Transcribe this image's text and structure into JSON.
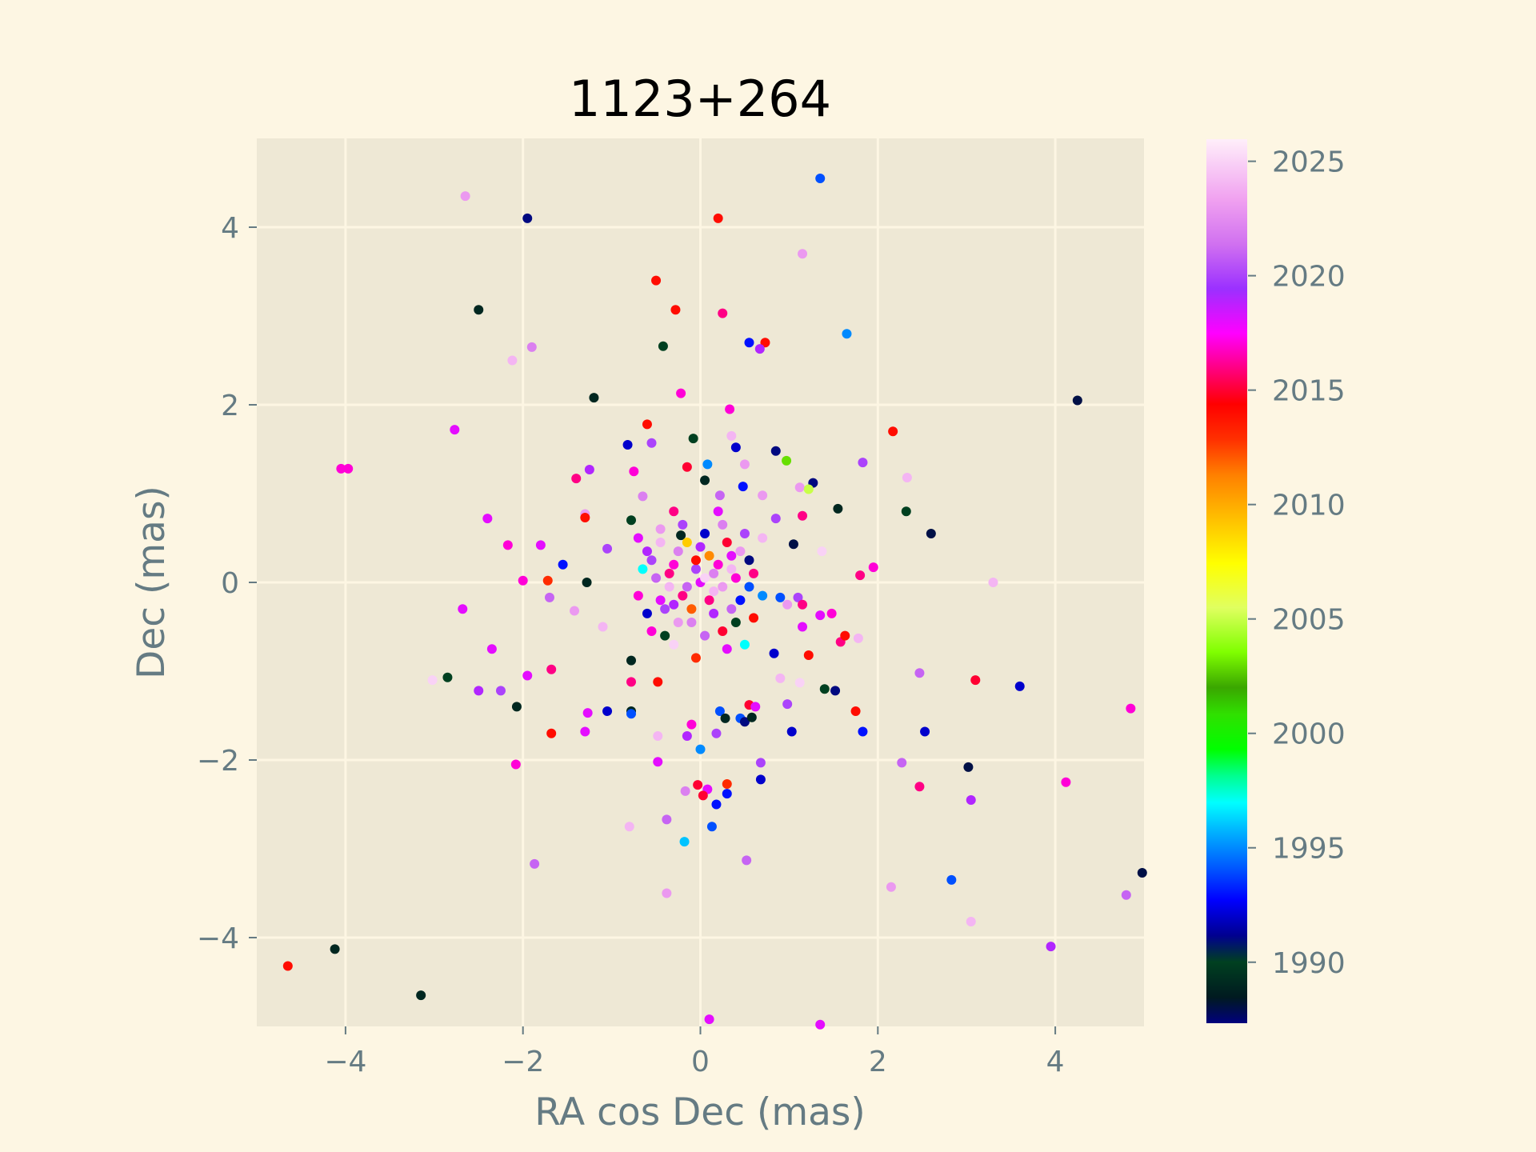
{
  "chart_data": {
    "type": "scatter",
    "title": "1123+264",
    "xlabel": "RA cos Dec (mas)",
    "ylabel": "Dec (mas)",
    "xlim": [
      -5,
      5
    ],
    "ylim": [
      -5,
      5
    ],
    "xticks": [
      -4,
      -2,
      0,
      2,
      4
    ],
    "yticks": [
      -4,
      -2,
      0,
      2,
      4
    ],
    "xtick_labels": [
      "−4",
      "−2",
      "0",
      "2",
      "4"
    ],
    "ytick_labels": [
      "−4",
      "−2",
      "0",
      "2",
      "4"
    ],
    "grid": true,
    "colorbar": {
      "label": "",
      "range": [
        1987.3,
        2026.0
      ],
      "ticks": [
        1990,
        1995,
        2000,
        2005,
        2010,
        2015,
        2020,
        2025
      ],
      "tick_labels": [
        "1990",
        "1995",
        "2000",
        "2005",
        "2010",
        "2015",
        "2020",
        "2025"
      ],
      "colormap": "gist_ncar"
    },
    "colors": {
      "figure_bg": "#fdf6e3",
      "axes_bg": "#eee8d5",
      "grid": "#fdf6e3",
      "tick_text": "#657b83",
      "title_text": "#000000"
    },
    "points": [
      {
        "x": 1.35,
        "y": 4.55,
        "t": 1994
      },
      {
        "x": -2.65,
        "y": 4.35,
        "t": 2023
      },
      {
        "x": -1.95,
        "y": 4.1,
        "t": 1991
      },
      {
        "x": 0.2,
        "y": 4.1,
        "t": 2014
      },
      {
        "x": 1.15,
        "y": 3.7,
        "t": 2023
      },
      {
        "x": -0.5,
        "y": 3.4,
        "t": 2014
      },
      {
        "x": -2.5,
        "y": 3.07,
        "t": 1989
      },
      {
        "x": -0.28,
        "y": 3.07,
        "t": 2014
      },
      {
        "x": 0.25,
        "y": 3.03,
        "t": 2016
      },
      {
        "x": 1.65,
        "y": 2.8,
        "t": 1995
      },
      {
        "x": -0.42,
        "y": 2.66,
        "t": 1990
      },
      {
        "x": 0.55,
        "y": 2.7,
        "t": 1993
      },
      {
        "x": 0.73,
        "y": 2.7,
        "t": 2014
      },
      {
        "x": 0.67,
        "y": 2.63,
        "t": 2019
      },
      {
        "x": -1.9,
        "y": 2.65,
        "t": 2022
      },
      {
        "x": -2.12,
        "y": 2.5,
        "t": 2024
      },
      {
        "x": -1.2,
        "y": 2.08,
        "t": 1989
      },
      {
        "x": -0.22,
        "y": 2.13,
        "t": 2017
      },
      {
        "x": 0.33,
        "y": 1.95,
        "t": 2017
      },
      {
        "x": 4.25,
        "y": 2.05,
        "t": 1988
      },
      {
        "x": -2.77,
        "y": 1.72,
        "t": 2018
      },
      {
        "x": -0.6,
        "y": 1.78,
        "t": 2014
      },
      {
        "x": -0.08,
        "y": 1.62,
        "t": 1990
      },
      {
        "x": 0.35,
        "y": 1.65,
        "t": 2024
      },
      {
        "x": 2.17,
        "y": 1.7,
        "t": 2014
      },
      {
        "x": -0.82,
        "y": 1.55,
        "t": 1992
      },
      {
        "x": -0.55,
        "y": 1.57,
        "t": 2020
      },
      {
        "x": 0.4,
        "y": 1.52,
        "t": 1992
      },
      {
        "x": 0.85,
        "y": 1.48,
        "t": 1991
      },
      {
        "x": 0.97,
        "y": 1.37,
        "t": 2003
      },
      {
        "x": 1.83,
        "y": 1.35,
        "t": 2020
      },
      {
        "x": -4.05,
        "y": 1.28,
        "t": 2017
      },
      {
        "x": -3.97,
        "y": 1.28,
        "t": 2017
      },
      {
        "x": -0.75,
        "y": 1.25,
        "t": 2017
      },
      {
        "x": -0.15,
        "y": 1.3,
        "t": 2015
      },
      {
        "x": 0.08,
        "y": 1.33,
        "t": 1995
      },
      {
        "x": 0.5,
        "y": 1.33,
        "t": 2023
      },
      {
        "x": -1.25,
        "y": 1.27,
        "t": 2019
      },
      {
        "x": -1.4,
        "y": 1.17,
        "t": 2016
      },
      {
        "x": 0.05,
        "y": 1.15,
        "t": 1989
      },
      {
        "x": 1.27,
        "y": 1.12,
        "t": 1991
      },
      {
        "x": 2.33,
        "y": 1.18,
        "t": 2024
      },
      {
        "x": 0.48,
        "y": 1.08,
        "t": 1993
      },
      {
        "x": 1.12,
        "y": 1.07,
        "t": 2023
      },
      {
        "x": 1.22,
        "y": 1.05,
        "t": 2005
      },
      {
        "x": -0.65,
        "y": 0.97,
        "t": 2022
      },
      {
        "x": 0.22,
        "y": 0.98,
        "t": 2021
      },
      {
        "x": 0.7,
        "y": 0.98,
        "t": 2023
      },
      {
        "x": 1.55,
        "y": 0.83,
        "t": 1989
      },
      {
        "x": 2.32,
        "y": 0.8,
        "t": 1990
      },
      {
        "x": -1.3,
        "y": 0.77,
        "t": 2023
      },
      {
        "x": -1.3,
        "y": 0.73,
        "t": 2014
      },
      {
        "x": -2.4,
        "y": 0.72,
        "t": 2018
      },
      {
        "x": 0.85,
        "y": 0.72,
        "t": 2020
      },
      {
        "x": 1.15,
        "y": 0.75,
        "t": 2016
      },
      {
        "x": -0.78,
        "y": 0.7,
        "t": 1990
      },
      {
        "x": 2.6,
        "y": 0.55,
        "t": 1988
      },
      {
        "x": -0.22,
        "y": 0.53,
        "t": 1989
      },
      {
        "x": 1.05,
        "y": 0.43,
        "t": 1988
      },
      {
        "x": -2.17,
        "y": 0.42,
        "t": 2017
      },
      {
        "x": -1.8,
        "y": 0.42,
        "t": 2018
      },
      {
        "x": 1.37,
        "y": 0.35,
        "t": 2025
      },
      {
        "x": -1.05,
        "y": 0.38,
        "t": 2020
      },
      {
        "x": -2.0,
        "y": 0.02,
        "t": 2017
      },
      {
        "x": -1.72,
        "y": 0.02,
        "t": 2013
      },
      {
        "x": -1.28,
        "y": 0.0,
        "t": 1989
      },
      {
        "x": -1.55,
        "y": 0.2,
        "t": 1993
      },
      {
        "x": 1.8,
        "y": 0.08,
        "t": 2016
      },
      {
        "x": 1.95,
        "y": 0.17,
        "t": 2017
      },
      {
        "x": 3.3,
        "y": 0.0,
        "t": 2024
      },
      {
        "x": -1.7,
        "y": -0.17,
        "t": 2021
      },
      {
        "x": -1.42,
        "y": -0.32,
        "t": 2023
      },
      {
        "x": -1.1,
        "y": -0.5,
        "t": 2024
      },
      {
        "x": 0.9,
        "y": -0.17,
        "t": 1994
      },
      {
        "x": 1.1,
        "y": -0.17,
        "t": 2020
      },
      {
        "x": 0.98,
        "y": -0.25,
        "t": 2023
      },
      {
        "x": 1.15,
        "y": -0.25,
        "t": 2016
      },
      {
        "x": 1.35,
        "y": -0.37,
        "t": 2018
      },
      {
        "x": 1.48,
        "y": -0.35,
        "t": 2017
      },
      {
        "x": -2.68,
        "y": -0.3,
        "t": 2018
      },
      {
        "x": 1.15,
        "y": -0.5,
        "t": 2018
      },
      {
        "x": 1.58,
        "y": -0.67,
        "t": 2016
      },
      {
        "x": 1.63,
        "y": -0.6,
        "t": 2014
      },
      {
        "x": 1.78,
        "y": -0.63,
        "t": 2024
      },
      {
        "x": 0.83,
        "y": -0.8,
        "t": 1992
      },
      {
        "x": 1.22,
        "y": -0.82,
        "t": 2014
      },
      {
        "x": -2.35,
        "y": -0.75,
        "t": 2018
      },
      {
        "x": -1.95,
        "y": -1.05,
        "t": 2018
      },
      {
        "x": -1.68,
        "y": -0.98,
        "t": 2016
      },
      {
        "x": -3.02,
        "y": -1.1,
        "t": 2025
      },
      {
        "x": -2.85,
        "y": -1.07,
        "t": 1990
      },
      {
        "x": -2.5,
        "y": -1.22,
        "t": 2019
      },
      {
        "x": -2.25,
        "y": -1.22,
        "t": 2020
      },
      {
        "x": -0.78,
        "y": -0.88,
        "t": 1989
      },
      {
        "x": -0.78,
        "y": -1.12,
        "t": 2016
      },
      {
        "x": -0.48,
        "y": -1.12,
        "t": 2014
      },
      {
        "x": 0.9,
        "y": -1.08,
        "t": 2024
      },
      {
        "x": 1.12,
        "y": -1.13,
        "t": 2025
      },
      {
        "x": 1.4,
        "y": -1.2,
        "t": 1990
      },
      {
        "x": 1.52,
        "y": -1.22,
        "t": 1991
      },
      {
        "x": 2.47,
        "y": -1.02,
        "t": 2021
      },
      {
        "x": 3.1,
        "y": -1.1,
        "t": 2015
      },
      {
        "x": 3.6,
        "y": -1.17,
        "t": 1992
      },
      {
        "x": -2.07,
        "y": -1.4,
        "t": 1989
      },
      {
        "x": -1.27,
        "y": -1.47,
        "t": 2018
      },
      {
        "x": -1.05,
        "y": -1.45,
        "t": 1992
      },
      {
        "x": -0.78,
        "y": -1.45,
        "t": 1989
      },
      {
        "x": -0.78,
        "y": -1.48,
        "t": 1994
      },
      {
        "x": 0.22,
        "y": -1.45,
        "t": 1994
      },
      {
        "x": 0.28,
        "y": -1.53,
        "t": 1989
      },
      {
        "x": 0.45,
        "y": -1.53,
        "t": 1994
      },
      {
        "x": 0.5,
        "y": -1.57,
        "t": 1991
      },
      {
        "x": 0.58,
        "y": -1.52,
        "t": 1989
      },
      {
        "x": 0.55,
        "y": -1.38,
        "t": 2015
      },
      {
        "x": 0.62,
        "y": -1.4,
        "t": 2018
      },
      {
        "x": 0.98,
        "y": -1.37,
        "t": 2020
      },
      {
        "x": 1.75,
        "y": -1.45,
        "t": 2014
      },
      {
        "x": -1.68,
        "y": -1.7,
        "t": 2014
      },
      {
        "x": -1.3,
        "y": -1.68,
        "t": 2018
      },
      {
        "x": -0.1,
        "y": -1.6,
        "t": 2017
      },
      {
        "x": -0.15,
        "y": -1.73,
        "t": 2019
      },
      {
        "x": 0.18,
        "y": -1.7,
        "t": 2020
      },
      {
        "x": -0.48,
        "y": -1.73,
        "t": 2024
      },
      {
        "x": 1.03,
        "y": -1.68,
        "t": 1992
      },
      {
        "x": 1.83,
        "y": -1.68,
        "t": 1993
      },
      {
        "x": 2.53,
        "y": -1.68,
        "t": 1992
      },
      {
        "x": 4.85,
        "y": -1.42,
        "t": 2017
      },
      {
        "x": 0.0,
        "y": -1.88,
        "t": 1995
      },
      {
        "x": -2.08,
        "y": -2.05,
        "t": 2017
      },
      {
        "x": -0.48,
        "y": -2.02,
        "t": 2018
      },
      {
        "x": 0.68,
        "y": -2.03,
        "t": 2020
      },
      {
        "x": 2.27,
        "y": -2.03,
        "t": 2021
      },
      {
        "x": 3.02,
        "y": -2.08,
        "t": 1988
      },
      {
        "x": 0.68,
        "y": -2.22,
        "t": 1992
      },
      {
        "x": 4.12,
        "y": -2.25,
        "t": 2017
      },
      {
        "x": -0.03,
        "y": -2.28,
        "t": 2015
      },
      {
        "x": 0.3,
        "y": -2.27,
        "t": 2013
      },
      {
        "x": 2.47,
        "y": -2.3,
        "t": 2016
      },
      {
        "x": -0.17,
        "y": -2.35,
        "t": 2022
      },
      {
        "x": 0.08,
        "y": -2.33,
        "t": 2018
      },
      {
        "x": 0.03,
        "y": -2.4,
        "t": 2015
      },
      {
        "x": 0.3,
        "y": -2.38,
        "t": 1993
      },
      {
        "x": 3.05,
        "y": -2.45,
        "t": 2019
      },
      {
        "x": 0.18,
        "y": -2.5,
        "t": 1993
      },
      {
        "x": -0.38,
        "y": -2.67,
        "t": 2021
      },
      {
        "x": 0.13,
        "y": -2.75,
        "t": 1994
      },
      {
        "x": -0.8,
        "y": -2.75,
        "t": 2024
      },
      {
        "x": -0.18,
        "y": -2.92,
        "t": 1996
      },
      {
        "x": -1.87,
        "y": -3.17,
        "t": 2021
      },
      {
        "x": 0.52,
        "y": -3.13,
        "t": 2021
      },
      {
        "x": 2.83,
        "y": -3.35,
        "t": 1994
      },
      {
        "x": 2.15,
        "y": -3.43,
        "t": 2023
      },
      {
        "x": -0.38,
        "y": -3.5,
        "t": 2023
      },
      {
        "x": 4.8,
        "y": -3.52,
        "t": 2021
      },
      {
        "x": 4.98,
        "y": -3.27,
        "t": 1988
      },
      {
        "x": 3.05,
        "y": -3.82,
        "t": 2024
      },
      {
        "x": -4.12,
        "y": -4.13,
        "t": 1989
      },
      {
        "x": 3.95,
        "y": -4.1,
        "t": 2019
      },
      {
        "x": -4.65,
        "y": -4.32,
        "t": 2014
      },
      {
        "x": -3.15,
        "y": -4.65,
        "t": 1989
      },
      {
        "x": 0.1,
        "y": -4.92,
        "t": 2018
      },
      {
        "x": 1.35,
        "y": -4.98,
        "t": 2018
      },
      {
        "x": -0.3,
        "y": 0.8,
        "t": 2016
      },
      {
        "x": 0.2,
        "y": 0.8,
        "t": 2018
      },
      {
        "x": -0.45,
        "y": 0.6,
        "t": 2023
      },
      {
        "x": 0.05,
        "y": 0.55,
        "t": 1992
      },
      {
        "x": 0.5,
        "y": 0.55,
        "t": 2020
      },
      {
        "x": -0.6,
        "y": 0.35,
        "t": 2019
      },
      {
        "x": -0.3,
        "y": 0.2,
        "t": 2017
      },
      {
        "x": 0.1,
        "y": 0.3,
        "t": 2011
      },
      {
        "x": 0.35,
        "y": 0.15,
        "t": 2024
      },
      {
        "x": -0.5,
        "y": 0.05,
        "t": 2021
      },
      {
        "x": 0.0,
        "y": 0.0,
        "t": 2018
      },
      {
        "x": 0.25,
        "y": -0.05,
        "t": 2023
      },
      {
        "x": -0.2,
        "y": -0.15,
        "t": 2016
      },
      {
        "x": 0.45,
        "y": -0.2,
        "t": 1993
      },
      {
        "x": -0.4,
        "y": -0.3,
        "t": 2020
      },
      {
        "x": 0.15,
        "y": -0.35,
        "t": 2019
      },
      {
        "x": -0.1,
        "y": -0.45,
        "t": 2022
      },
      {
        "x": 0.4,
        "y": -0.45,
        "t": 1990
      },
      {
        "x": -0.55,
        "y": -0.55,
        "t": 2017
      },
      {
        "x": 0.05,
        "y": -0.6,
        "t": 2021
      },
      {
        "x": -0.3,
        "y": -0.7,
        "t": 2025
      },
      {
        "x": 0.3,
        "y": -0.75,
        "t": 2018
      },
      {
        "x": -0.65,
        "y": 0.15,
        "t": 1997
      },
      {
        "x": 0.6,
        "y": 0.1,
        "t": 2016
      },
      {
        "x": -0.15,
        "y": 0.45,
        "t": 2009
      },
      {
        "x": 0.3,
        "y": 0.45,
        "t": 2015
      },
      {
        "x": -0.35,
        "y": -0.05,
        "t": 2024
      },
      {
        "x": 0.55,
        "y": -0.05,
        "t": 1994
      },
      {
        "x": -0.05,
        "y": 0.15,
        "t": 2020
      },
      {
        "x": 0.2,
        "y": 0.2,
        "t": 2017
      },
      {
        "x": -0.25,
        "y": 0.35,
        "t": 2022
      },
      {
        "x": 0.1,
        "y": -0.2,
        "t": 2016
      },
      {
        "x": -0.45,
        "y": -0.2,
        "t": 2018
      },
      {
        "x": 0.35,
        "y": -0.3,
        "t": 2021
      },
      {
        "x": -0.1,
        "y": -0.3,
        "t": 2012
      },
      {
        "x": 0.05,
        "y": 0.05,
        "t": 2025
      },
      {
        "x": -0.6,
        "y": -0.35,
        "t": 1992
      },
      {
        "x": 0.6,
        "y": -0.4,
        "t": 2014
      },
      {
        "x": -0.2,
        "y": 0.65,
        "t": 2020
      },
      {
        "x": 0.45,
        "y": 0.35,
        "t": 2023
      },
      {
        "x": -0.7,
        "y": 0.5,
        "t": 2018
      },
      {
        "x": 0.7,
        "y": 0.5,
        "t": 2024
      },
      {
        "x": -0.05,
        "y": -0.85,
        "t": 2013
      },
      {
        "x": 0.5,
        "y": -0.7,
        "t": 1997
      },
      {
        "x": -0.4,
        "y": -0.6,
        "t": 1990
      },
      {
        "x": 0.25,
        "y": 0.65,
        "t": 2022
      },
      {
        "x": -0.35,
        "y": 0.1,
        "t": 2016
      },
      {
        "x": 0.15,
        "y": -0.1,
        "t": 2024
      },
      {
        "x": -0.15,
        "y": -0.05,
        "t": 2021
      },
      {
        "x": 0.4,
        "y": 0.05,
        "t": 2017
      },
      {
        "x": -0.25,
        "y": -0.45,
        "t": 2023
      },
      {
        "x": 0.0,
        "y": 0.4,
        "t": 2019
      },
      {
        "x": 0.55,
        "y": 0.25,
        "t": 1991
      },
      {
        "x": -0.55,
        "y": 0.25,
        "t": 2020
      },
      {
        "x": 0.25,
        "y": -0.55,
        "t": 2015
      },
      {
        "x": -0.45,
        "y": 0.45,
        "t": 2024
      },
      {
        "x": 0.35,
        "y": 0.3,
        "t": 2018
      },
      {
        "x": -0.05,
        "y": 0.25,
        "t": 2014
      },
      {
        "x": 0.15,
        "y": 0.1,
        "t": 2022
      },
      {
        "x": -0.3,
        "y": -0.25,
        "t": 2019
      },
      {
        "x": 0.7,
        "y": -0.15,
        "t": 1995
      },
      {
        "x": -0.7,
        "y": -0.15,
        "t": 2017
      }
    ]
  }
}
